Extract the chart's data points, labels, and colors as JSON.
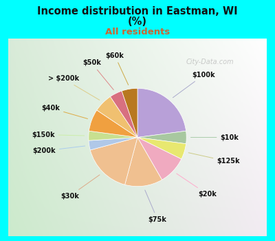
{
  "title_line1": "Income distribution in Eastman, WI",
  "title_line2": "(%)",
  "subtitle": "All residents",
  "title_color": "#111111",
  "subtitle_color": "#cc6633",
  "bg_cyan": "#00ffff",
  "watermark": "City-Data.com",
  "labels": [
    "$100k",
    "$10k",
    "$125k",
    "$20k",
    "$75k",
    "$30k",
    "$200k",
    "$150k",
    "$40k",
    "> $200k",
    "$50k",
    "$60k"
  ],
  "values": [
    22,
    4,
    5,
    9,
    12,
    16,
    3,
    3,
    7,
    6,
    4,
    5
  ],
  "colors": [
    "#b8a0d8",
    "#a8c8a0",
    "#e8e870",
    "#f0aac0",
    "#f0c090",
    "#f0c090",
    "#b0c8e8",
    "#c8e090",
    "#f0a040",
    "#f0c070",
    "#d87080",
    "#b87820"
  ],
  "startangle": 90,
  "title_fontsize": 10.5,
  "subtitle_fontsize": 9.5,
  "label_fontsize": 7
}
